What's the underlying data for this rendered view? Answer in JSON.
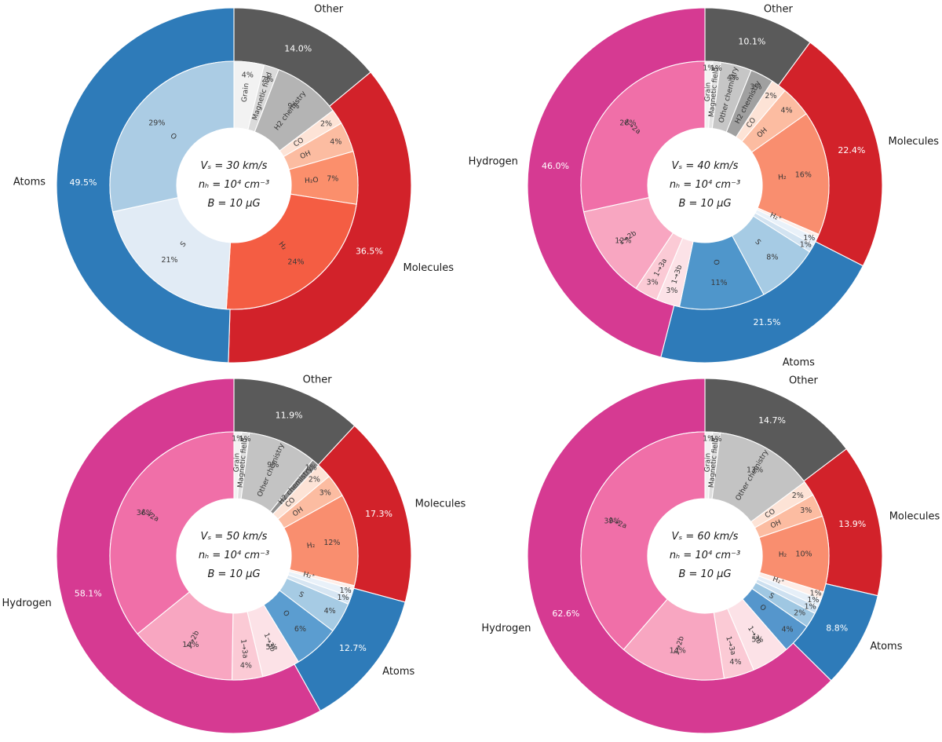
{
  "figure": {
    "background": "#ffffff"
  },
  "chart_data": [
    {
      "panel": "top-left",
      "type": "nested_donut",
      "title_lines": [
        "Vₛ = 30 km/s",
        "nₕ = 10⁴ cm⁻³",
        "B = 10 μG"
      ],
      "legend_position": "none",
      "outer_ring": [
        {
          "label": "Other",
          "pct_label": "14.0%",
          "value": 14.0,
          "color": "#5a5a5a"
        },
        {
          "label": "Molecules",
          "pct_label": "36.5%",
          "value": 36.5,
          "color": "#d2222a"
        },
        {
          "label": "Atoms",
          "pct_label": "49.5%",
          "value": 49.5,
          "color": "#2e7bb9"
        }
      ],
      "inner_ring": [
        {
          "label": "Grain",
          "pct_label": "4%",
          "value": 4,
          "color": "#f2f2f2"
        },
        {
          "label": "Magnetic field",
          "pct_label": "2%",
          "value": 2,
          "color": "#dadada"
        },
        {
          "label": "H2 chemistry",
          "pct_label": "9%",
          "value": 9,
          "color": "#b4b4b4"
        },
        {
          "label": "CO",
          "pct_label": "2%",
          "value": 2,
          "color": "#fde3d6"
        },
        {
          "label": "OH",
          "pct_label": "4%",
          "value": 4,
          "color": "#fcbca1"
        },
        {
          "label": "H₂O",
          "pct_label": "7%",
          "value": 7,
          "color": "#fb8f6c"
        },
        {
          "label": "H₂",
          "pct_label": "24%",
          "value": 24,
          "color": "#f45d43"
        },
        {
          "label": "S",
          "pct_label": "21%",
          "value": 21,
          "color": "#e1ebf5"
        },
        {
          "label": "O",
          "pct_label": "29%",
          "value": 29,
          "color": "#abcce4"
        }
      ]
    },
    {
      "panel": "top-right",
      "type": "nested_donut",
      "title_lines": [
        "Vₛ = 40 km/s",
        "nₕ = 10⁴ cm⁻³",
        "B = 10 μG"
      ],
      "legend_position": "none",
      "outer_ring": [
        {
          "label": "Other",
          "pct_label": "10.1%",
          "value": 10.1,
          "color": "#5a5a5a"
        },
        {
          "label": "Molecules",
          "pct_label": "22.4%",
          "value": 22.4,
          "color": "#d2222a"
        },
        {
          "label": "Atoms",
          "pct_label": "21.5%",
          "value": 21.5,
          "color": "#2e7bb9"
        },
        {
          "label": "Hydrogen",
          "pct_label": "46.0%",
          "value": 46.0,
          "color": "#d63a92"
        }
      ],
      "inner_ring": [
        {
          "label": "Grain",
          "pct_label": "1%",
          "value": 1,
          "color": "#f2f2f2"
        },
        {
          "label": "Magnetic field",
          "pct_label": "1%",
          "value": 1,
          "color": "#e3e3e3"
        },
        {
          "label": "Other chemistry",
          "pct_label": "4%",
          "value": 4,
          "color": "#c6c6c6"
        },
        {
          "label": "H2 chemistry",
          "pct_label": "3%",
          "value": 3,
          "color": "#a0a0a0"
        },
        {
          "label": "CO",
          "pct_label": "2%",
          "value": 2,
          "color": "#fde3d6"
        },
        {
          "label": "OH",
          "pct_label": "4%",
          "value": 4,
          "color": "#fcbca1"
        },
        {
          "label": "H₂",
          "pct_label": "16%",
          "value": 16,
          "color": "#f98e6f"
        },
        {
          "label": "H₂⁺",
          "pct_label": "",
          "value": 0.5,
          "color": "#feeee8"
        },
        {
          "label": "",
          "pct_label": "1%",
          "value": 1,
          "color": "#e9f1f9"
        },
        {
          "label": "",
          "pct_label": "1%",
          "value": 1,
          "color": "#d2e3f1"
        },
        {
          "label": "S",
          "pct_label": "8%",
          "value": 8,
          "color": "#a6cbe4"
        },
        {
          "label": "O",
          "pct_label": "11%",
          "value": 11,
          "color": "#4f96cb"
        },
        {
          "label": "1→3b",
          "pct_label": "3%",
          "value": 3,
          "color": "#fce2e7"
        },
        {
          "label": "1→3a",
          "pct_label": "3%",
          "value": 3,
          "color": "#fbcad5"
        },
        {
          "label": "1→2b",
          "pct_label": "12%",
          "value": 12,
          "color": "#f8a6c1"
        },
        {
          "label": "1→2a",
          "pct_label": "28%",
          "value": 28,
          "color": "#f06fa8"
        }
      ]
    },
    {
      "panel": "bottom-left",
      "type": "nested_donut",
      "title_lines": [
        "Vₛ = 50 km/s",
        "nₕ = 10⁴ cm⁻³",
        "B = 10 μG"
      ],
      "legend_position": "none",
      "outer_ring": [
        {
          "label": "Other",
          "pct_label": "11.9%",
          "value": 11.9,
          "color": "#5a5a5a"
        },
        {
          "label": "Molecules",
          "pct_label": "17.3%",
          "value": 17.3,
          "color": "#d2222a"
        },
        {
          "label": "Atoms",
          "pct_label": "12.7%",
          "value": 12.7,
          "color": "#2e7bb9"
        },
        {
          "label": "Hydrogen",
          "pct_label": "58.1%",
          "value": 58.1,
          "color": "#d63a92"
        }
      ],
      "inner_ring": [
        {
          "label": "Grain",
          "pct_label": "1%",
          "value": 1,
          "color": "#f2f2f2"
        },
        {
          "label": "Magnetic field",
          "pct_label": "1%",
          "value": 1,
          "color": "#e0e0e0"
        },
        {
          "label": "Other chemistry",
          "pct_label": "9%",
          "value": 9,
          "color": "#c3c3c3"
        },
        {
          "label": "H2 chemistry",
          "pct_label": "1%",
          "value": 1,
          "color": "#8d8d8d"
        },
        {
          "label": "CO",
          "pct_label": "2%",
          "value": 2,
          "color": "#fde3d6"
        },
        {
          "label": "OH",
          "pct_label": "3%",
          "value": 3,
          "color": "#fcbca1"
        },
        {
          "label": "H₂",
          "pct_label": "12%",
          "value": 12,
          "color": "#f98e6f"
        },
        {
          "label": "H₂⁺",
          "pct_label": "",
          "value": 0.5,
          "color": "#feeee8"
        },
        {
          "label": "",
          "pct_label": "1%",
          "value": 1,
          "color": "#e9f1f9"
        },
        {
          "label": "",
          "pct_label": "1%",
          "value": 1,
          "color": "#d6e5f2"
        },
        {
          "label": "S",
          "pct_label": "4%",
          "value": 4,
          "color": "#a6cbe4"
        },
        {
          "label": "O",
          "pct_label": "6%",
          "value": 6,
          "color": "#5b9dd0"
        },
        {
          "label": "1→3b",
          "pct_label": "5%",
          "value": 5,
          "color": "#fce2e7"
        },
        {
          "label": "1→3a",
          "pct_label": "4%",
          "value": 4,
          "color": "#fbcad5"
        },
        {
          "label": "1→2b",
          "pct_label": "14%",
          "value": 14,
          "color": "#f8a6c1"
        },
        {
          "label": "1→2a",
          "pct_label": "36%",
          "value": 36,
          "color": "#f06fa8"
        }
      ]
    },
    {
      "panel": "bottom-right",
      "type": "nested_donut",
      "title_lines": [
        "Vₛ = 60 km/s",
        "nₕ = 10⁴ cm⁻³",
        "B = 10 μG"
      ],
      "legend_position": "none",
      "outer_ring": [
        {
          "label": "Other",
          "pct_label": "14.7%",
          "value": 14.7,
          "color": "#5a5a5a"
        },
        {
          "label": "Molecules",
          "pct_label": "13.9%",
          "value": 13.9,
          "color": "#d2222a"
        },
        {
          "label": "Atoms",
          "pct_label": "8.8%",
          "value": 8.8,
          "color": "#2e7bb9"
        },
        {
          "label": "Hydrogen",
          "pct_label": "62.6%",
          "value": 62.6,
          "color": "#d63a92"
        }
      ],
      "inner_ring": [
        {
          "label": "Grain",
          "pct_label": "1%",
          "value": 1,
          "color": "#f1f1f1"
        },
        {
          "label": "Magnetic field",
          "pct_label": "1%",
          "value": 1,
          "color": "#dedede"
        },
        {
          "label": "Other chemistry",
          "pct_label": "13%",
          "value": 13,
          "color": "#c3c3c3"
        },
        {
          "label": "CO",
          "pct_label": "2%",
          "value": 2,
          "color": "#fde3d6"
        },
        {
          "label": "OH",
          "pct_label": "3%",
          "value": 3,
          "color": "#fcbca1"
        },
        {
          "label": "H₂",
          "pct_label": "10%",
          "value": 10,
          "color": "#f98e6f"
        },
        {
          "label": "H₂⁺",
          "pct_label": "1%",
          "value": 1,
          "color": "#feeee8"
        },
        {
          "label": "",
          "pct_label": "1%",
          "value": 1,
          "color": "#e6eff8"
        },
        {
          "label": "",
          "pct_label": "1%",
          "value": 1,
          "color": "#cde0f0"
        },
        {
          "label": "S",
          "pct_label": "2%",
          "value": 2,
          "color": "#9fc7e2"
        },
        {
          "label": "O",
          "pct_label": "4%",
          "value": 4,
          "color": "#5596cc"
        },
        {
          "label": "1→3b",
          "pct_label": "5%",
          "value": 5,
          "color": "#fce2e7"
        },
        {
          "label": "1→3a",
          "pct_label": "4%",
          "value": 4,
          "color": "#fbcad5"
        },
        {
          "label": "1→2b",
          "pct_label": "14%",
          "value": 14,
          "color": "#f8a6c1"
        },
        {
          "label": "1→2a",
          "pct_label": "39%",
          "value": 39,
          "color": "#f06fa8"
        }
      ]
    }
  ]
}
